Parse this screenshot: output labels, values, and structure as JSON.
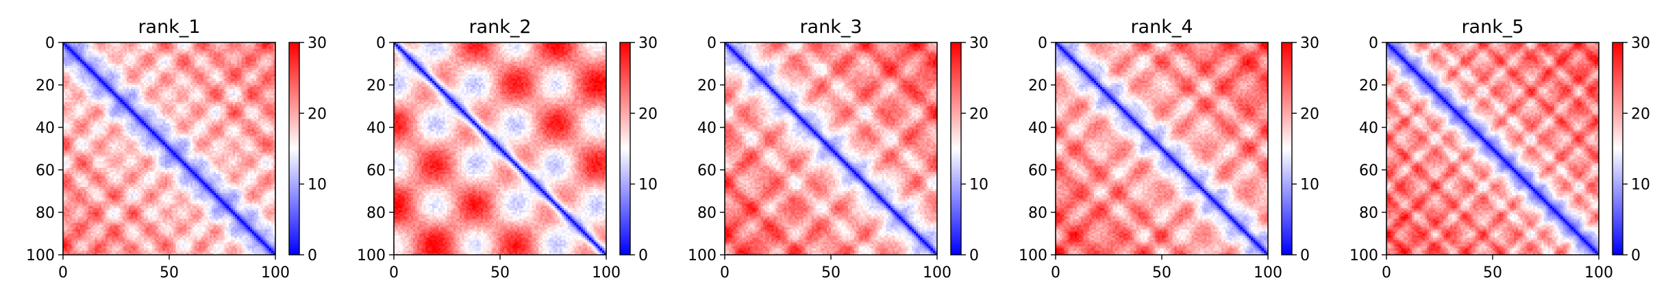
{
  "chart_data": [
    {
      "type": "heatmap",
      "title": "rank_1",
      "xlabel": "",
      "ylabel": "",
      "xlim": [
        0,
        100
      ],
      "ylim": [
        100,
        0
      ],
      "x_ticks": [
        "0",
        "50",
        "100"
      ],
      "y_ticks": [
        "0",
        "20",
        "40",
        "60",
        "80",
        "100"
      ],
      "colorbar": {
        "range": [
          0,
          30
        ],
        "ticks": [
          "0",
          "10",
          "20",
          "30"
        ],
        "colormap": "bwr"
      },
      "pattern": {
        "diag_width": 4.5,
        "modes": [
          {
            "period": 16,
            "amp": 4.0
          },
          {
            "period": 23,
            "amp": 2.5
          }
        ],
        "base": 17,
        "slope": 0.06
      }
    },
    {
      "type": "heatmap",
      "title": "rank_2",
      "xlabel": "",
      "ylabel": "",
      "xlim": [
        0,
        100
      ],
      "ylim": [
        100,
        0
      ],
      "x_ticks": [
        "0",
        "50",
        "100"
      ],
      "y_ticks": [
        "0",
        "20",
        "40",
        "60",
        "80",
        "100"
      ],
      "colorbar": {
        "range": [
          0,
          30
        ],
        "ticks": [
          "0",
          "10",
          "20",
          "30"
        ],
        "colormap": "bwr"
      },
      "pattern": {
        "diag_width": 3.5,
        "modes": [
          {
            "period": 38,
            "amp": 8.0
          }
        ],
        "base": 19,
        "slope": 0.04
      }
    },
    {
      "type": "heatmap",
      "title": "rank_3",
      "xlabel": "",
      "ylabel": "",
      "xlim": [
        0,
        100
      ],
      "ylim": [
        100,
        0
      ],
      "x_ticks": [
        "0",
        "50",
        "100"
      ],
      "y_ticks": [
        "0",
        "20",
        "40",
        "60",
        "80",
        "100"
      ],
      "colorbar": {
        "range": [
          0,
          30
        ],
        "ticks": [
          "0",
          "10",
          "20",
          "30"
        ],
        "colormap": "bwr"
      },
      "pattern": {
        "diag_width": 4.0,
        "modes": [
          {
            "period": 22,
            "amp": 4.5
          },
          {
            "period": 13,
            "amp": 2.0
          }
        ],
        "base": 18,
        "slope": 0.07
      }
    },
    {
      "type": "heatmap",
      "title": "rank_4",
      "xlabel": "",
      "ylabel": "",
      "xlim": [
        0,
        100
      ],
      "ylim": [
        100,
        0
      ],
      "x_ticks": [
        "0",
        "50",
        "100"
      ],
      "y_ticks": [
        "0",
        "20",
        "40",
        "60",
        "80",
        "100"
      ],
      "colorbar": {
        "range": [
          0,
          30
        ],
        "ticks": [
          "0",
          "10",
          "20",
          "30"
        ],
        "colormap": "bwr"
      },
      "pattern": {
        "diag_width": 4.0,
        "modes": [
          {
            "period": 20,
            "amp": 4.5
          },
          {
            "period": 14,
            "amp": 2.0
          }
        ],
        "base": 18,
        "slope": 0.07
      }
    },
    {
      "type": "heatmap",
      "title": "rank_5",
      "xlabel": "",
      "ylabel": "",
      "xlim": [
        0,
        100
      ],
      "ylim": [
        100,
        0
      ],
      "x_ticks": [
        "0",
        "50",
        "100"
      ],
      "y_ticks": [
        "0",
        "20",
        "40",
        "60",
        "80",
        "100"
      ],
      "colorbar": {
        "range": [
          0,
          30
        ],
        "ticks": [
          "0",
          "10",
          "20",
          "30"
        ],
        "colormap": "bwr"
      },
      "pattern": {
        "diag_width": 5.0,
        "modes": [
          {
            "period": 15,
            "amp": 4.5
          },
          {
            "period": 9,
            "amp": 2.0
          }
        ],
        "base": 19,
        "slope": 0.06
      }
    }
  ]
}
